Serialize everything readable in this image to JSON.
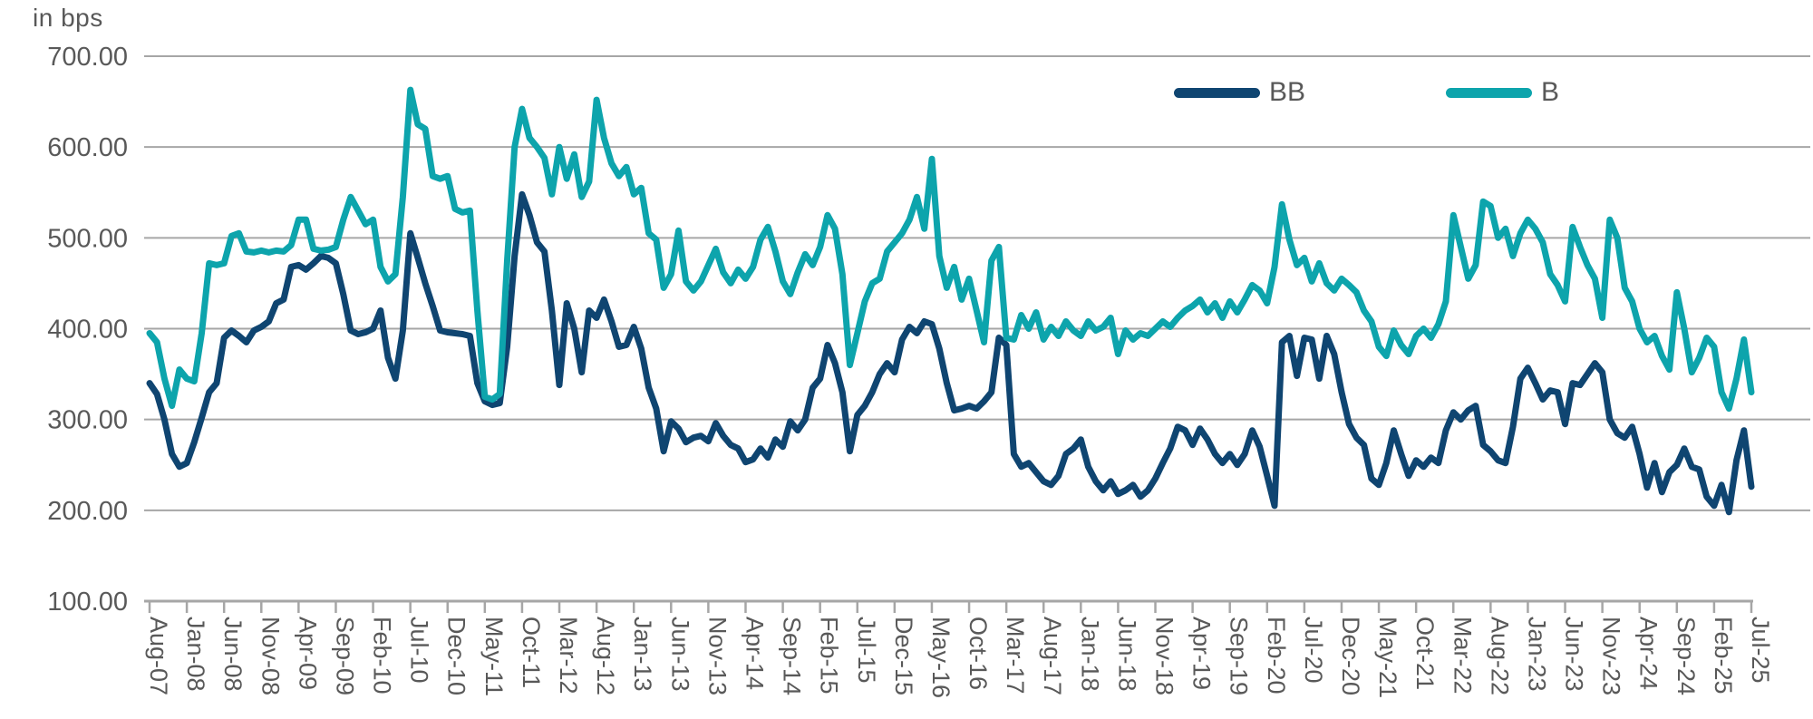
{
  "colors": {
    "text": "#595959",
    "grid": "#a6a6a6",
    "axis": "#a6a6a6",
    "background": "#ffffff",
    "series_bb": "#0f4571",
    "series_b": "#0da4ac"
  },
  "chart_data": {
    "type": "line",
    "title": "",
    "unit_label": "in bps",
    "ylabel": "",
    "xlabel": "",
    "ylim": [
      100,
      700
    ],
    "grid": true,
    "legend_position": "top-right",
    "y_tick_labels": [
      "700.00",
      "600.00",
      "500.00",
      "400.00",
      "300.00",
      "200.00",
      "100.00"
    ],
    "y_tick_values": [
      700,
      600,
      500,
      400,
      300,
      200,
      100
    ],
    "x_tick_labels": [
      "Aug-07",
      "Jan-08",
      "Jun-08",
      "Nov-08",
      "Apr-09",
      "Sep-09",
      "Feb-10",
      "Jul-10",
      "Dec-10",
      "May-11",
      "Oct-11",
      "Mar-12",
      "Aug-12",
      "Jan-13",
      "Jun-13",
      "Nov-13",
      "Apr-14",
      "Sep-14",
      "Feb-15",
      "Jul-15",
      "Dec-15",
      "May-16",
      "Oct-16",
      "Mar-17",
      "Aug-17",
      "Jan-18",
      "Jun-18",
      "Nov-18",
      "Apr-19",
      "Sep-19",
      "Feb-20",
      "Jul-20",
      "Dec-20",
      "May-21",
      "Oct-21",
      "Mar-22",
      "Aug-22",
      "Jan-23",
      "Jun-23",
      "Nov-23",
      "Apr-24",
      "Sep-24",
      "Feb-25",
      "Jul-25"
    ],
    "x_tick_interval_months": 5,
    "x_start": "Aug-07",
    "x_end": "Jul-25",
    "months_total": 216,
    "series": [
      {
        "name": "BB",
        "color": "#0f4571",
        "values": [
          340,
          328,
          300,
          262,
          248,
          252,
          275,
          302,
          330,
          340,
          390,
          398,
          392,
          385,
          398,
          402,
          408,
          428,
          432,
          468,
          470,
          465,
          472,
          480,
          478,
          472,
          438,
          398,
          394,
          396,
          400,
          420,
          368,
          345,
          398,
          505,
          478,
          450,
          425,
          398,
          396,
          395,
          394,
          392,
          340,
          320,
          316,
          318,
          380,
          480,
          548,
          525,
          495,
          485,
          420,
          338,
          428,
          400,
          352,
          420,
          412,
          432,
          408,
          380,
          382,
          402,
          378,
          335,
          312,
          265,
          298,
          290,
          275,
          280,
          282,
          276,
          296,
          282,
          272,
          268,
          253,
          256,
          268,
          258,
          278,
          270,
          298,
          288,
          300,
          335,
          345,
          382,
          362,
          330,
          265,
          305,
          315,
          330,
          350,
          362,
          352,
          388,
          402,
          395,
          408,
          405,
          378,
          340,
          310,
          312,
          315,
          312,
          320,
          330,
          390,
          382,
          262,
          248,
          252,
          242,
          232,
          228,
          238,
          262,
          268,
          278,
          248,
          232,
          222,
          232,
          218,
          222,
          228,
          215,
          222,
          235,
          252,
          268,
          292,
          288,
          272,
          290,
          278,
          262,
          252,
          262,
          250,
          262,
          288,
          270,
          238,
          205,
          385,
          392,
          348,
          390,
          388,
          345,
          392,
          372,
          330,
          295,
          280,
          272,
          235,
          228,
          252,
          288,
          262,
          238,
          255,
          248,
          258,
          252,
          288,
          308,
          300,
          310,
          315,
          272,
          265,
          255,
          252,
          292,
          345,
          357,
          340,
          322,
          332,
          330,
          295,
          340,
          338,
          350,
          362,
          352,
          300,
          285,
          280,
          292,
          262,
          225,
          252,
          220,
          242,
          250,
          268,
          248,
          245,
          215,
          205,
          228,
          198,
          255,
          288,
          226
        ]
      },
      {
        "name": "B",
        "color": "#0da4ac",
        "values": [
          395,
          385,
          345,
          315,
          355,
          345,
          342,
          395,
          472,
          470,
          472,
          502,
          505,
          485,
          484,
          486,
          484,
          486,
          485,
          492,
          520,
          520,
          488,
          486,
          487,
          490,
          520,
          545,
          530,
          515,
          520,
          468,
          452,
          460,
          545,
          663,
          625,
          620,
          568,
          565,
          568,
          532,
          528,
          530,
          420,
          325,
          322,
          328,
          475,
          600,
          642,
          610,
          600,
          588,
          548,
          600,
          565,
          592,
          545,
          562,
          652,
          610,
          582,
          568,
          578,
          548,
          555,
          505,
          498,
          445,
          460,
          508,
          452,
          442,
          452,
          470,
          488,
          462,
          450,
          465,
          455,
          468,
          498,
          512,
          485,
          452,
          438,
          462,
          482,
          470,
          490,
          525,
          510,
          460,
          360,
          395,
          430,
          450,
          455,
          485,
          495,
          505,
          520,
          545,
          510,
          587,
          480,
          445,
          468,
          432,
          455,
          420,
          385,
          475,
          490,
          390,
          388,
          415,
          400,
          418,
          388,
          402,
          392,
          408,
          398,
          392,
          408,
          398,
          402,
          412,
          372,
          398,
          388,
          395,
          392,
          400,
          408,
          402,
          412,
          420,
          425,
          432,
          418,
          428,
          412,
          430,
          418,
          432,
          448,
          442,
          428,
          468,
          537,
          498,
          470,
          478,
          452,
          472,
          450,
          442,
          455,
          448,
          440,
          420,
          408,
          380,
          370,
          398,
          382,
          372,
          392,
          400,
          390,
          405,
          430,
          525,
          490,
          455,
          470,
          540,
          535,
          500,
          510,
          480,
          505,
          520,
          510,
          495,
          460,
          448,
          430,
          512,
          490,
          470,
          455,
          412,
          520,
          500,
          445,
          430,
          400,
          385,
          392,
          370,
          355,
          440,
          400,
          352,
          368,
          390,
          380,
          330,
          312,
          345,
          388,
          330
        ]
      }
    ]
  }
}
